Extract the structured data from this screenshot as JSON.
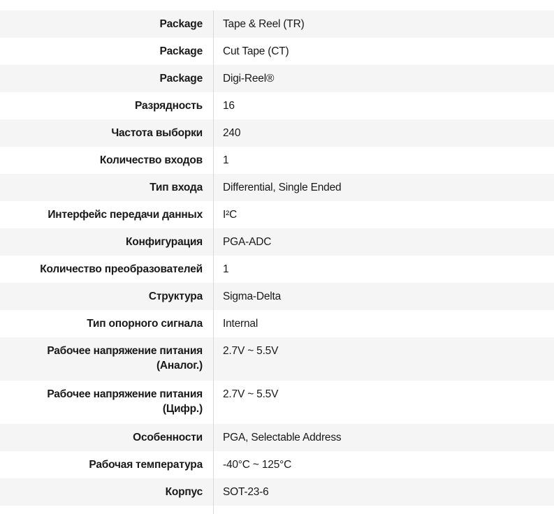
{
  "table": {
    "colors": {
      "stripe": "#f5f5f5",
      "divider": "#d9d9d9",
      "text": "#191919",
      "background": "#ffffff"
    },
    "rows": [
      {
        "label": "Package",
        "value": "Tape & Reel (TR)"
      },
      {
        "label": "Package",
        "value": "Cut Tape (CT)"
      },
      {
        "label": "Package",
        "value": "Digi-Reel®"
      },
      {
        "label": "Разрядность",
        "value": "16"
      },
      {
        "label": "Частота выборки",
        "value": "240"
      },
      {
        "label": "Количество входов",
        "value": "1"
      },
      {
        "label": "Тип входа",
        "value": "Differential, Single Ended"
      },
      {
        "label": "Интерфейс передачи данных",
        "value": "I²C"
      },
      {
        "label": "Конфигурация",
        "value": "PGA-ADC"
      },
      {
        "label": "Количество преобразователей",
        "value": "1"
      },
      {
        "label": "Структура",
        "value": "Sigma-Delta"
      },
      {
        "label": "Тип опорного сигнала",
        "value": "Internal"
      },
      {
        "label": "Рабочее напряжение питания\n(Аналог.)",
        "value": "2.7V ~ 5.5V"
      },
      {
        "label": "Рабочее напряжение питания\n(Цифр.)",
        "value": "2.7V ~ 5.5V"
      },
      {
        "label": "Особенности",
        "value": "PGA, Selectable Address"
      },
      {
        "label": "Рабочая температура",
        "value": "-40°C ~ 125°C"
      },
      {
        "label": "Корпус",
        "value": "SOT-23-6"
      }
    ]
  }
}
